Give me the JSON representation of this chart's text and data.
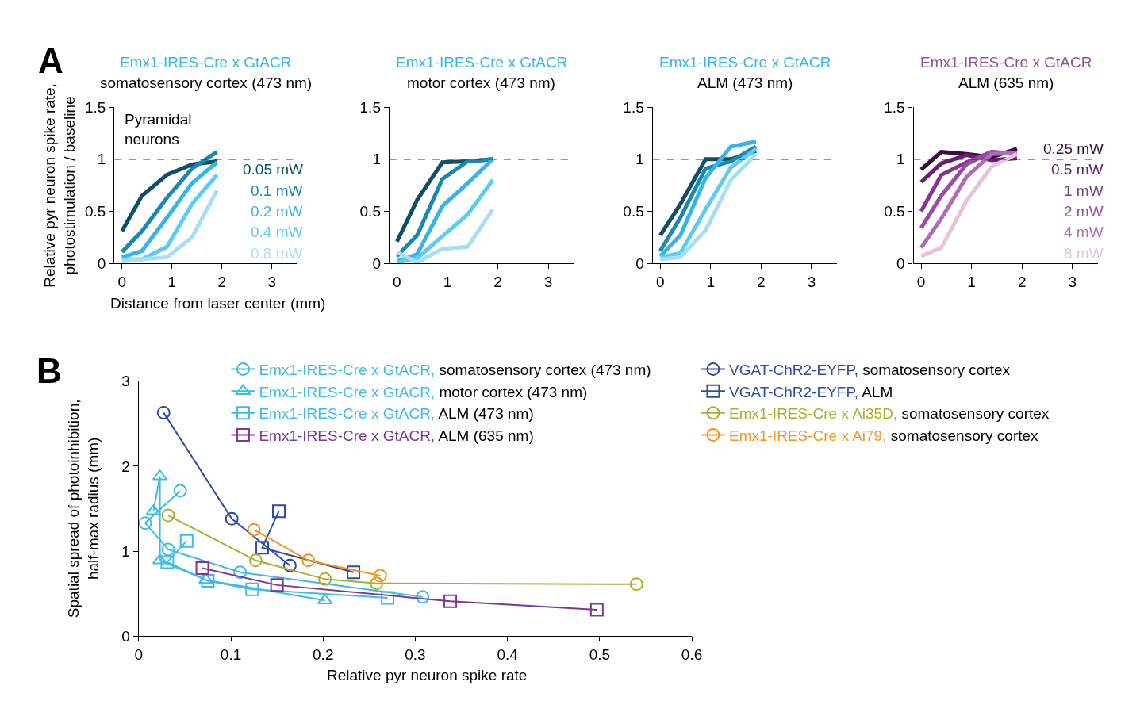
{
  "chart_data": [
    {
      "type": "line",
      "title": "Emx1-IRES-Cre x GtACR",
      "subtitle": "somatosensory cortex (473 nm)",
      "ylabel": "Relative pyr neuron spike rate,\nphotostimulation / baseline",
      "xlabel": "Distance from laser center (mm)",
      "annotations": [
        "A",
        "Pyramidal\nneurons"
      ],
      "x": [
        0,
        0.4,
        0.9,
        1.4,
        1.9
      ],
      "xlim": [
        -0.15,
        3.5
      ],
      "xticks": [
        0,
        1,
        2,
        3
      ],
      "ylim": [
        0,
        1.5
      ],
      "yticks": [
        0,
        0.5,
        1,
        1.5
      ],
      "ref_lines": [
        {
          "axis": "y",
          "value": 1,
          "color": "#333333",
          "line_style": "dashed"
        }
      ],
      "series": [
        {
          "name": "0.05 mW",
          "color": "#0e5068",
          "values": [
            0.31,
            0.65,
            0.85,
            0.95,
            0.98
          ]
        },
        {
          "name": "0.1 mW",
          "color": "#1a89b2",
          "values": [
            0.11,
            0.31,
            0.63,
            0.91,
            1.07
          ]
        },
        {
          "name": "0.2 mW",
          "color": "#35b6e8",
          "values": [
            0.06,
            0.12,
            0.44,
            0.77,
            0.97
          ]
        },
        {
          "name": "0.4 mW",
          "color": "#5ccdf2",
          "values": [
            0.04,
            0.04,
            0.16,
            0.57,
            0.85
          ]
        },
        {
          "name": "0.8 mW",
          "color": "#a6dff3",
          "values": [
            0.02,
            0.04,
            0.06,
            0.25,
            0.7
          ]
        }
      ]
    },
    {
      "type": "line",
      "title": "Emx1-IRES-Cre x GtACR",
      "subtitle": "motor cortex (473 nm)",
      "x": [
        0,
        0.4,
        0.9,
        1.4,
        1.9
      ],
      "xlim": [
        -0.15,
        3.5
      ],
      "xticks": [
        0,
        1,
        2,
        3
      ],
      "ylim": [
        0,
        1.5
      ],
      "yticks": [
        0,
        0.5,
        1,
        1.5
      ],
      "ref_lines": [
        {
          "axis": "y",
          "value": 1,
          "color": "#333333",
          "line_style": "dashed"
        }
      ],
      "series": [
        {
          "color": "#0e5068",
          "values": [
            0.21,
            0.61,
            0.97,
            0.98,
            1.0
          ]
        },
        {
          "color": "#1a89b2",
          "values": [
            0.07,
            0.27,
            0.81,
            0.98,
            1.0
          ]
        },
        {
          "color": "#35b6e8",
          "values": [
            0.02,
            0.09,
            0.55,
            0.77,
            1.0
          ]
        },
        {
          "color": "#5ccdf2",
          "values": [
            0.01,
            0.05,
            0.26,
            0.47,
            0.8
          ]
        },
        {
          "color": "#a6dff3",
          "values": [
            0.11,
            0.01,
            0.14,
            0.16,
            0.52
          ]
        }
      ]
    },
    {
      "type": "line",
      "title": "Emx1-IRES-Cre x GtACR",
      "subtitle": "ALM (473 nm)",
      "x": [
        0,
        0.4,
        0.9,
        1.4,
        1.9
      ],
      "xlim": [
        -0.15,
        3.5
      ],
      "xticks": [
        0,
        1,
        2,
        3
      ],
      "ylim": [
        0,
        1.5
      ],
      "yticks": [
        0,
        0.5,
        1,
        1.5
      ],
      "ref_lines": [
        {
          "axis": "y",
          "value": 1,
          "color": "#333333",
          "line_style": "dashed"
        }
      ],
      "series": [
        {
          "color": "#0e5068",
          "values": [
            0.27,
            0.57,
            1.0,
            1.0,
            1.08
          ]
        },
        {
          "color": "#1a89b2",
          "values": [
            0.12,
            0.44,
            0.91,
            0.98,
            1.12
          ]
        },
        {
          "color": "#35b6e8",
          "values": [
            0.07,
            0.27,
            0.82,
            1.12,
            1.17
          ]
        },
        {
          "color": "#5ccdf2",
          "values": [
            0.06,
            0.1,
            0.52,
            0.92,
            1.1
          ]
        },
        {
          "color": "#a6dff3",
          "values": [
            0.04,
            0.06,
            0.32,
            0.8,
            1.05
          ]
        }
      ]
    },
    {
      "type": "line",
      "title": "Emx1-IRES-Cre x GtACR",
      "subtitle": "ALM (635 nm)",
      "x": [
        0,
        0.4,
        0.9,
        1.4,
        1.9
      ],
      "xlim": [
        -0.15,
        3.5
      ],
      "xticks": [
        0,
        1,
        2,
        3
      ],
      "ylim": [
        0,
        1.5
      ],
      "yticks": [
        0,
        0.5,
        1,
        1.5
      ],
      "ref_lines": [
        {
          "axis": "y",
          "value": 1,
          "color": "#333333",
          "line_style": "dashed"
        }
      ],
      "series": [
        {
          "name": "0.25 mW",
          "color": "#3b0a3f",
          "values": [
            0.9,
            1.07,
            1.05,
            1.02,
            1.1
          ]
        },
        {
          "name": "0.5 mW",
          "color": "#66206e",
          "values": [
            0.78,
            0.96,
            1.04,
            0.99,
            1.01
          ]
        },
        {
          "name": "1 mW",
          "color": "#86368e",
          "values": [
            0.5,
            0.85,
            0.97,
            1.07,
            1.05
          ]
        },
        {
          "name": "2 mW",
          "color": "#9a4ca2",
          "values": [
            0.34,
            0.65,
            0.95,
            1.07,
            1.05
          ]
        },
        {
          "name": "4 mW",
          "color": "#b06db6",
          "values": [
            0.15,
            0.43,
            0.83,
            1.05,
            1.06
          ]
        },
        {
          "name": "8 mW",
          "color": "#e6c3df",
          "values": [
            0.07,
            0.15,
            0.6,
            0.93,
            1.05
          ]
        }
      ]
    },
    {
      "type": "line",
      "ylabel": "Spatial spread of photoinhibition,\nhalf-max radius (mm)",
      "xlabel": "Relative pyr neuron spike rate",
      "annotations": [
        "B"
      ],
      "legend": "top right",
      "xlim": [
        0,
        0.6
      ],
      "xticks": [
        0,
        0.1,
        0.2,
        0.3,
        0.4,
        0.5,
        0.6
      ],
      "ylim": [
        0,
        3
      ],
      "yticks": [
        0,
        1,
        2,
        3
      ],
      "series": [
        {
          "name": "Emx1-IRES-Cre x GtACR, somatosensory cortex (473 nm)",
          "color": "#3dbbe9",
          "marker": "circle",
          "x": [
            0.045,
            0.007,
            0.032,
            0.11,
            0.308
          ],
          "values": [
            1.71,
            1.33,
            1.02,
            0.75,
            0.46
          ]
        },
        {
          "name": "Emx1-IRES-Cre x GtACR, motor cortex (473 nm)",
          "color": "#3dbbe9",
          "marker": "triangle",
          "x": [
            0.016,
            0.023,
            0.023,
            0.073,
            0.202
          ],
          "values": [
            1.47,
            1.88,
            0.89,
            0.66,
            0.42
          ]
        },
        {
          "name": "Emx1-IRES-Cre x GtACR, ALM (473 nm)",
          "color": "#3dbbe9",
          "marker": "square",
          "x": [
            0.052,
            0.031,
            0.075,
            0.123,
            0.27
          ],
          "values": [
            1.12,
            0.87,
            0.65,
            0.55,
            0.45
          ]
        },
        {
          "name": "Emx1-IRES-Cre x GtACR, ALM (635 nm)",
          "color": "#7d3793",
          "marker": "square",
          "x": [
            0.069,
            0.15,
            0.338,
            0.497
          ],
          "values": [
            0.8,
            0.6,
            0.41,
            0.31
          ]
        },
        {
          "name": "VGAT-ChR2-EYFP, somatosensory cortex",
          "color": "#2f4da0",
          "marker": "circle",
          "x": [
            0.027,
            0.101,
            0.164
          ],
          "values": [
            2.63,
            1.38,
            0.83
          ]
        },
        {
          "name": "VGAT-ChR2-EYFP, ALM",
          "color": "#2f4da0",
          "marker": "square",
          "x": [
            0.152,
            0.134,
            0.233
          ],
          "values": [
            1.47,
            1.04,
            0.75
          ]
        },
        {
          "name": "Emx1-IRES-Cre x Ai35D, somatosensory cortex",
          "color": "#a9b02d",
          "marker": "circle",
          "x": [
            0.032,
            0.127,
            0.202,
            0.258,
            0.54
          ],
          "values": [
            1.42,
            0.89,
            0.67,
            0.62,
            0.61
          ]
        },
        {
          "name": "Emx1-IRES-Cre x Ai79, somatosensory cortex",
          "color": "#f7941d",
          "marker": "circle",
          "x": [
            0.125,
            0.184,
            0.262
          ],
          "values": [
            1.25,
            0.89,
            0.71
          ]
        }
      ]
    }
  ]
}
